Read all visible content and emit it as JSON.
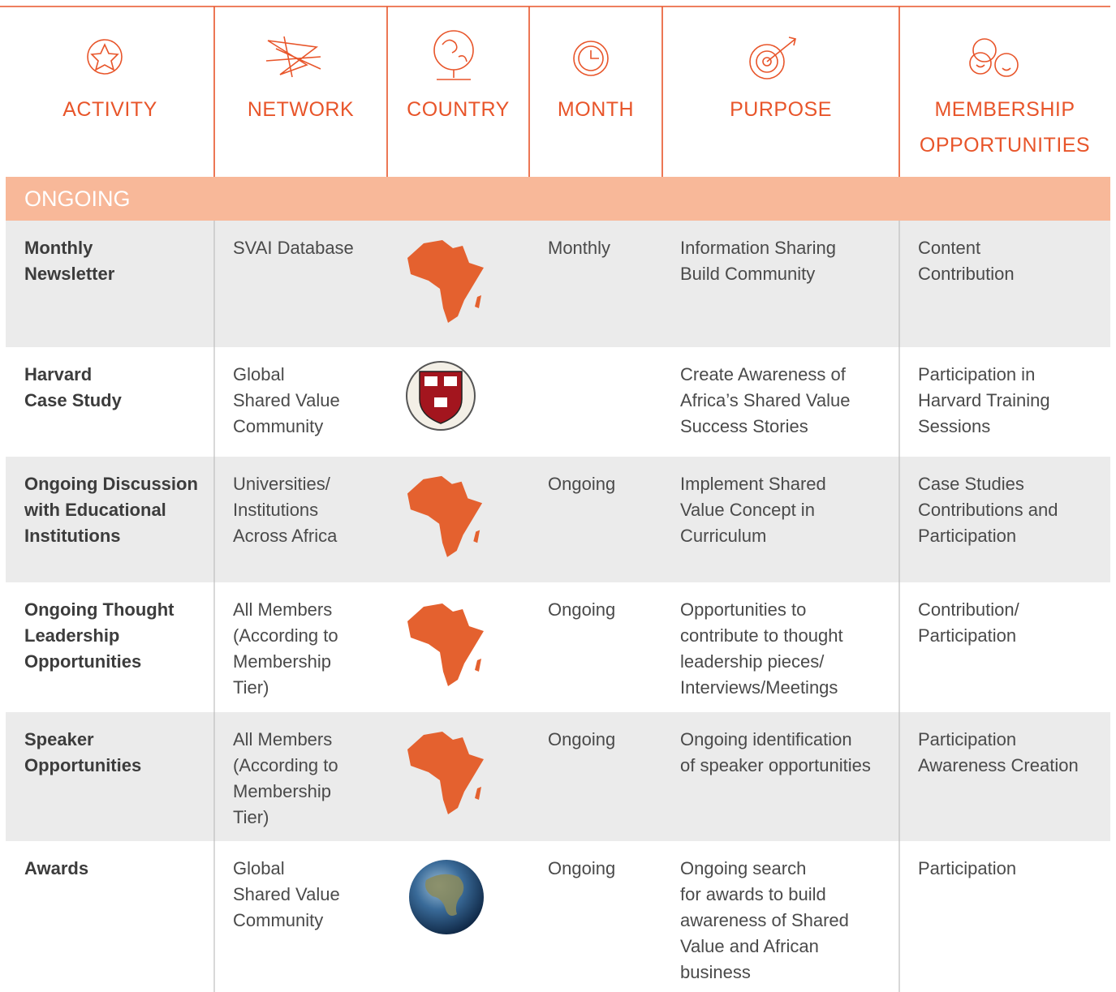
{
  "header": {
    "columns": [
      [
        "ACTIVITY"
      ],
      [
        "NETWORK"
      ],
      [
        "COUNTRY"
      ],
      [
        "MONTH"
      ],
      [
        "PURPOSE"
      ],
      [
        "MEMBERSHIP",
        "OPPORTUNITIES"
      ]
    ]
  },
  "section": {
    "title": "ONGOING"
  },
  "table": {
    "rows": [
      {
        "activity": [
          "Monthly",
          "Newsletter"
        ],
        "network": [
          "SVAI Database"
        ],
        "month": [
          "Monthly"
        ],
        "purpose": [
          "Information Sharing",
          "Build Community"
        ],
        "membership": [
          "Content",
          "Contribution"
        ]
      },
      {
        "activity": [
          "Harvard",
          "Case Study"
        ],
        "network": [
          "Global",
          "Shared Value",
          "Community"
        ],
        "purpose": [
          "Create Awareness of",
          "Africa’s Shared Value",
          "Success Stories"
        ],
        "membership": [
          "Participation in",
          "Harvard Training",
          "Sessions"
        ]
      },
      {
        "activity": [
          "Ongoing Discussion",
          "with Educational",
          "Institutions"
        ],
        "network": [
          "Universities/",
          "Institutions",
          "Across Africa"
        ],
        "month": [
          "Ongoing"
        ],
        "purpose": [
          "Implement Shared",
          "Value Concept in",
          "Curriculum"
        ],
        "membership": [
          "Case Studies",
          "Contributions and",
          "Participation"
        ]
      },
      {
        "activity": [
          "Ongoing Thought",
          "Leadership",
          "Opportunities"
        ],
        "network": [
          "All Members",
          "(According to",
          "Membership",
          "Tier)"
        ],
        "month": [
          "Ongoing"
        ],
        "purpose": [
          "Opportunities to",
          "contribute to thought",
          "leadership pieces/",
          "Interviews/Meetings"
        ],
        "membership": [
          "Contribution/",
          "Participation"
        ]
      },
      {
        "activity": [
          "Speaker",
          "Opportunities"
        ],
        "network": [
          "All Members",
          "(According to",
          "Membership",
          "Tier)"
        ],
        "month": [
          "Ongoing"
        ],
        "purpose": [
          "Ongoing identification",
          "of speaker opportunities"
        ],
        "membership": [
          "Participation",
          "Awareness Creation"
        ]
      },
      {
        "activity": [
          "Awards"
        ],
        "network": [
          "Global",
          "Shared Value",
          "Community"
        ],
        "month": [
          "Ongoing"
        ],
        "purpose": [
          "Ongoing search",
          "for awards to build",
          "awareness of Shared",
          "Value and African",
          "business"
        ],
        "membership": [
          "Participation"
        ]
      }
    ]
  }
}
